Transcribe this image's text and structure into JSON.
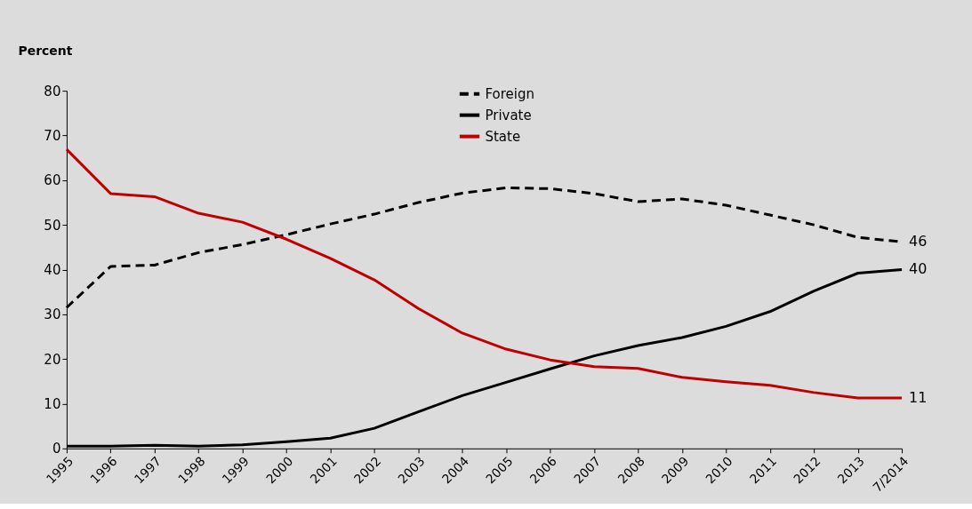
{
  "chart_data": {
    "type": "line",
    "ylabel": "Percent",
    "categories": [
      "1995",
      "1996",
      "1997",
      "1998",
      "1999",
      "2000",
      "2001",
      "2002",
      "2003",
      "2004",
      "2005",
      "2006",
      "2007",
      "2008",
      "2009",
      "2010",
      "2011",
      "2012",
      "2013",
      "7/2014"
    ],
    "ylim": [
      0,
      80
    ],
    "yticks": [
      0,
      10,
      20,
      30,
      40,
      50,
      60,
      70,
      80
    ],
    "legend": "top",
    "series": [
      {
        "name": "Foreign",
        "color": "#000000",
        "line_style": "dashed",
        "values": [
          31.5,
          40.7,
          41,
          43.8,
          45.6,
          47.8,
          50.2,
          52.4,
          55,
          57.1,
          58.3,
          58.1,
          57,
          55.2,
          55.8,
          54.4,
          52.2,
          50,
          47.2,
          46.2
        ],
        "value_labels": [
          null,
          null,
          null,
          null,
          null,
          null,
          null,
          null,
          null,
          null,
          null,
          null,
          null,
          null,
          null,
          null,
          null,
          null,
          null,
          "46"
        ]
      },
      {
        "name": "Private",
        "color": "#000000",
        "line_style": "solid",
        "values": [
          0.5,
          0.5,
          0.7,
          0.5,
          0.8,
          1.5,
          2.3,
          4.5,
          8.2,
          11.8,
          14.8,
          17.8,
          20.7,
          23,
          24.8,
          27.3,
          30.6,
          35.2,
          39.2,
          40
        ],
        "value_labels": [
          null,
          null,
          null,
          null,
          null,
          null,
          null,
          null,
          null,
          null,
          null,
          null,
          null,
          null,
          null,
          null,
          null,
          null,
          null,
          "40"
        ]
      },
      {
        "name": "State",
        "color": "#c00000",
        "line_style": "solid",
        "values": [
          66.9,
          57,
          56.3,
          52.6,
          50.6,
          46.8,
          42.5,
          37.7,
          31.3,
          25.8,
          22.2,
          19.8,
          18.3,
          17.9,
          15.9,
          14.9,
          14.1,
          12.5,
          11.3,
          11.3
        ],
        "value_labels": [
          null,
          null,
          null,
          null,
          null,
          null,
          null,
          null,
          null,
          null,
          null,
          null,
          null,
          null,
          null,
          null,
          null,
          null,
          null,
          "11"
        ]
      }
    ]
  }
}
